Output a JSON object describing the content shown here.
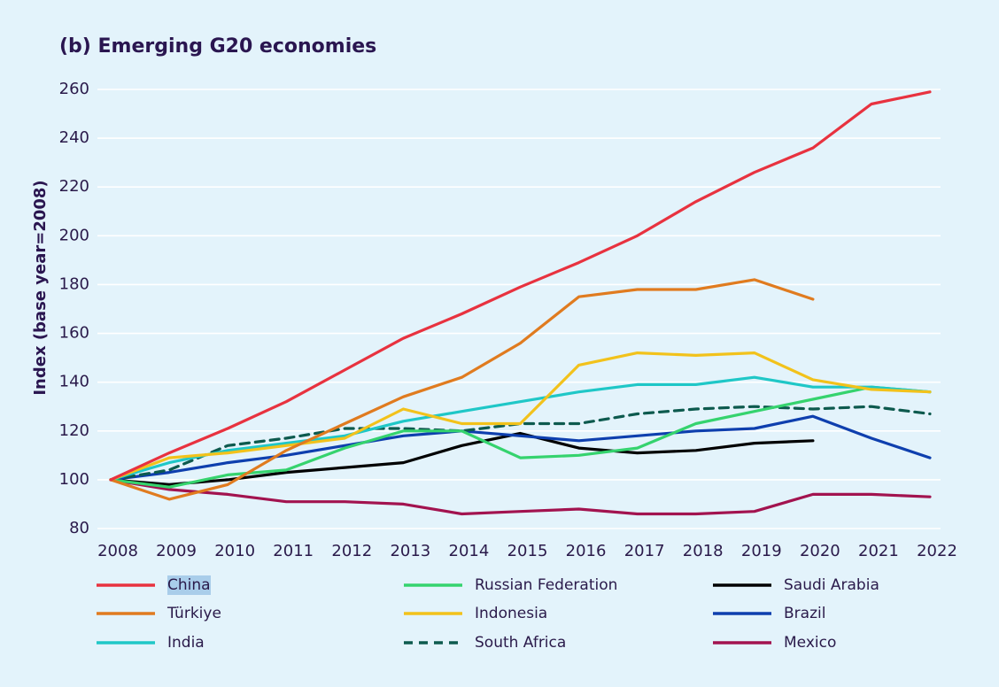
{
  "chart_data": {
    "type": "line",
    "title": "(b) Emerging G20 economies",
    "xlabel": "",
    "ylabel": "Index (base year=2008)",
    "ylim": [
      80,
      260
    ],
    "yticks": [
      80,
      100,
      120,
      140,
      160,
      180,
      200,
      220,
      240,
      260
    ],
    "grid": true,
    "x": [
      "2008",
      "2009",
      "2010",
      "2011",
      "2012",
      "2013",
      "2014",
      "2015",
      "2016",
      "2017",
      "2018",
      "2019",
      "2020",
      "2021",
      "2022"
    ],
    "series": [
      {
        "name": "China",
        "color": "#e8323f",
        "dash": false,
        "selected": true,
        "values": [
          100,
          111,
          121,
          132,
          145,
          158,
          168,
          179,
          189,
          200,
          214,
          226,
          236,
          254,
          259
        ]
      },
      {
        "name": "Türkiye",
        "color": "#e07b1f",
        "dash": false,
        "values": [
          100,
          92,
          98,
          112,
          123,
          134,
          142,
          156,
          175,
          178,
          178,
          182,
          174,
          null,
          null
        ]
      },
      {
        "name": "India",
        "color": "#1fc7c7",
        "dash": false,
        "values": [
          100,
          107,
          112,
          115,
          118,
          124,
          128,
          132,
          136,
          139,
          139,
          142,
          138,
          138,
          136
        ]
      },
      {
        "name": "Russian Federation",
        "color": "#35d36e",
        "dash": false,
        "values": [
          100,
          97,
          102,
          104,
          113,
          120,
          120,
          109,
          110,
          113,
          123,
          128,
          133,
          138,
          136
        ]
      },
      {
        "name": "Indonesia",
        "color": "#f2c21b",
        "dash": false,
        "values": [
          100,
          109,
          111,
          114,
          117,
          129,
          123,
          123,
          147,
          152,
          151,
          152,
          141,
          137,
          136
        ]
      },
      {
        "name": "South Africa",
        "color": "#0d5a4e",
        "dash": true,
        "values": [
          100,
          104,
          114,
          117,
          121,
          121,
          120,
          123,
          123,
          127,
          129,
          130,
          129,
          130,
          127
        ]
      },
      {
        "name": "Saudi Arabia",
        "color": "#000000",
        "dash": false,
        "values": [
          100,
          98,
          100,
          103,
          105,
          107,
          114,
          119,
          113,
          111,
          112,
          115,
          116,
          null,
          null
        ]
      },
      {
        "name": "Brazil",
        "color": "#0e3fae",
        "dash": false,
        "values": [
          100,
          103,
          107,
          110,
          114,
          118,
          120,
          118,
          116,
          118,
          120,
          121,
          126,
          117,
          109
        ]
      },
      {
        "name": "Mexico",
        "color": "#a2134f",
        "dash": false,
        "values": [
          100,
          96,
          94,
          91,
          91,
          90,
          86,
          87,
          88,
          86,
          86,
          87,
          94,
          94,
          93
        ]
      }
    ]
  }
}
